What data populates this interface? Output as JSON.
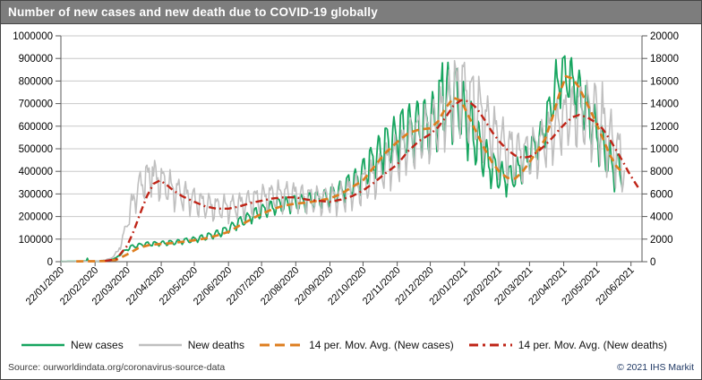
{
  "window": {
    "title": "Number of new cases and new death due to COVID-19 globally"
  },
  "footer": {
    "source": "Source: ourworldindata.org/coronavirus-source-data",
    "copyright": "© 2021 IHS Markit"
  },
  "colors": {
    "title_bg": "#7d7d7d",
    "title_text": "#ffffff",
    "frame_border": "#454545",
    "grid": "#c8c8c8",
    "axis": "#595959",
    "text": "#000000",
    "source_text": "#3a3a3a",
    "copyright_text": "#1f3864"
  },
  "chart_data": {
    "type": "line",
    "title": "Number of new cases and new death due to COVID-19 globally",
    "x_unit": "days since 22/01/2020",
    "x_range": [
      0,
      527
    ],
    "grid": "horizontal-only",
    "legend_position": "bottom",
    "left_axis": {
      "label": "New cases",
      "min": 0,
      "max": 1000000,
      "step": 100000
    },
    "right_axis": {
      "label": "New deaths",
      "min": 0,
      "max": 20000,
      "step": 2000
    },
    "x_tick_days": [
      0,
      31,
      60,
      91,
      121,
      152,
      182,
      213,
      244,
      274,
      305,
      335,
      366,
      397,
      425,
      456,
      486,
      517
    ],
    "x_tick_labels": [
      "22/01/2020",
      "22/02/2020",
      "22/03/2020",
      "22/04/2020",
      "22/05/2020",
      "22/06/2020",
      "22/07/2020",
      "22/08/2020",
      "22/09/2020",
      "22/10/2020",
      "22/11/2020",
      "22/12/2020",
      "22/01/2021",
      "22/02/2021",
      "22/03/2021",
      "22/04/2021",
      "22/05/2021",
      "22/06/2021"
    ],
    "weekly_pattern": [
      0.45,
      0.95,
      0.8,
      0.35,
      -0.25,
      -1.0,
      -0.7
    ],
    "series": [
      {
        "name": "New cases",
        "axis": "left",
        "color": "#16a55f",
        "width": 1.8,
        "style": "solid-daily",
        "start": 0,
        "end": 509,
        "seed": 0.8,
        "baseline": [
          [
            0,
            600
          ],
          [
            20,
            2100
          ],
          [
            30,
            1900
          ],
          [
            40,
            3200
          ],
          [
            50,
            16000
          ],
          [
            57,
            45000
          ],
          [
            64,
            66000
          ],
          [
            75,
            77000
          ],
          [
            87,
            80000
          ],
          [
            100,
            84000
          ],
          [
            110,
            90000
          ],
          [
            117,
            95000
          ],
          [
            127,
            104000
          ],
          [
            137,
            117000
          ],
          [
            148,
            134000
          ],
          [
            158,
            163000
          ],
          [
            168,
            189000
          ],
          [
            178,
            214000
          ],
          [
            188,
            234000
          ],
          [
            198,
            249000
          ],
          [
            209,
            257000
          ],
          [
            219,
            263000
          ],
          [
            229,
            271000
          ],
          [
            240,
            281000
          ],
          [
            250,
            302000
          ],
          [
            260,
            332000
          ],
          [
            270,
            363000
          ],
          [
            280,
            424000
          ],
          [
            290,
            484000
          ],
          [
            301,
            533000
          ],
          [
            311,
            572000
          ],
          [
            321,
            586000
          ],
          [
            331,
            591000
          ],
          [
            338,
            622000
          ],
          [
            345,
            683000
          ],
          [
            352,
            727000
          ],
          [
            359,
            709000
          ],
          [
            366,
            639000
          ],
          [
            373,
            568000
          ],
          [
            380,
            498000
          ],
          [
            387,
            438000
          ],
          [
            394,
            393000
          ],
          [
            401,
            369000
          ],
          [
            408,
            367000
          ],
          [
            415,
            401000
          ],
          [
            421,
            441000
          ],
          [
            428,
            491000
          ],
          [
            435,
            541000
          ],
          [
            442,
            642000
          ],
          [
            448,
            743000
          ],
          [
            454,
            823000
          ],
          [
            460,
            809000
          ],
          [
            466,
            769000
          ],
          [
            473,
            699000
          ],
          [
            480,
            629000
          ],
          [
            487,
            549000
          ],
          [
            494,
            469000
          ],
          [
            500,
            419000
          ],
          [
            509,
            390000
          ]
        ],
        "amplitude": [
          [
            0,
            0.08
          ],
          [
            60,
            0.1
          ],
          [
            150,
            0.12
          ],
          [
            244,
            0.13
          ],
          [
            274,
            0.16
          ],
          [
            305,
            0.19
          ],
          [
            340,
            0.21
          ],
          [
            370,
            0.22
          ],
          [
            400,
            0.18
          ],
          [
            430,
            0.14
          ],
          [
            460,
            0.13
          ],
          [
            480,
            0.18
          ],
          [
            509,
            0.22
          ]
        ],
        "overrides": [
          [
            24,
            15000
          ],
          [
            346,
            880000
          ],
          [
            449,
            895000
          ],
          [
            456,
            905000
          ]
        ]
      },
      {
        "name": "New deaths",
        "axis": "right",
        "color": "#bfbfbf",
        "width": 1.6,
        "style": "solid-daily",
        "start": 0,
        "end": 511,
        "seed": 3.1,
        "baseline": [
          [
            0,
            3
          ],
          [
            20,
            12
          ],
          [
            35,
            60
          ],
          [
            45,
            260
          ],
          [
            52,
            900
          ],
          [
            58,
            2600
          ],
          [
            64,
            4800
          ],
          [
            70,
            6300
          ],
          [
            76,
            7100
          ],
          [
            83,
            7300
          ],
          [
            90,
            7000
          ],
          [
            100,
            6300
          ],
          [
            110,
            5800
          ],
          [
            121,
            5300
          ],
          [
            131,
            4900
          ],
          [
            141,
            4700
          ],
          [
            152,
            4700
          ],
          [
            162,
            4900
          ],
          [
            172,
            5200
          ],
          [
            182,
            5500
          ],
          [
            192,
            5700
          ],
          [
            202,
            5800
          ],
          [
            213,
            5700
          ],
          [
            223,
            5500
          ],
          [
            233,
            5400
          ],
          [
            244,
            5400
          ],
          [
            254,
            5700
          ],
          [
            264,
            6100
          ],
          [
            274,
            6700
          ],
          [
            284,
            7400
          ],
          [
            294,
            8300
          ],
          [
            305,
            9200
          ],
          [
            315,
            10300
          ],
          [
            325,
            11000
          ],
          [
            335,
            11600
          ],
          [
            342,
            12300
          ],
          [
            349,
            13300
          ],
          [
            356,
            14200
          ],
          [
            363,
            14500
          ],
          [
            370,
            14100
          ],
          [
            377,
            13300
          ],
          [
            384,
            12200
          ],
          [
            391,
            11100
          ],
          [
            398,
            10300
          ],
          [
            405,
            9700
          ],
          [
            412,
            9300
          ],
          [
            419,
            9200
          ],
          [
            425,
            9400
          ],
          [
            432,
            9900
          ],
          [
            439,
            10600
          ],
          [
            446,
            11300
          ],
          [
            452,
            12000
          ],
          [
            458,
            12600
          ],
          [
            464,
            13000
          ],
          [
            470,
            13100
          ],
          [
            477,
            12800
          ],
          [
            484,
            12300
          ],
          [
            491,
            11600
          ],
          [
            498,
            10500
          ],
          [
            504,
            9500
          ],
          [
            511,
            8300
          ]
        ],
        "amplitude": [
          [
            0,
            0.1
          ],
          [
            60,
            0.28
          ],
          [
            90,
            0.3
          ],
          [
            150,
            0.3
          ],
          [
            210,
            0.28
          ],
          [
            270,
            0.3
          ],
          [
            330,
            0.27
          ],
          [
            345,
            0.26
          ],
          [
            375,
            0.3
          ],
          [
            400,
            0.3
          ],
          [
            430,
            0.26
          ],
          [
            460,
            0.22
          ],
          [
            478,
            0.28
          ],
          [
            511,
            0.33
          ]
        ],
        "overrides": [
          [
            83,
            8400
          ],
          [
            357,
            17800
          ],
          [
            364,
            17400
          ],
          [
            484,
            15800
          ],
          [
            491,
            15900
          ]
        ]
      },
      {
        "name": "14 per. Mov. Avg. (New cases)",
        "axis": "left",
        "color": "#de7e20",
        "width": 2.7,
        "style": "dashed",
        "dash": "8 5",
        "legend_dash": "11 6",
        "points": [
          [
            14,
            1500
          ],
          [
            30,
            1900
          ],
          [
            40,
            2600
          ],
          [
            50,
            8000
          ],
          [
            60,
            32000
          ],
          [
            70,
            60000
          ],
          [
            80,
            74000
          ],
          [
            91,
            79000
          ],
          [
            100,
            82000
          ],
          [
            110,
            88000
          ],
          [
            121,
            95000
          ],
          [
            131,
            103000
          ],
          [
            141,
            115000
          ],
          [
            152,
            132000
          ],
          [
            162,
            160000
          ],
          [
            172,
            186000
          ],
          [
            182,
            212000
          ],
          [
            192,
            232000
          ],
          [
            202,
            248000
          ],
          [
            213,
            257000
          ],
          [
            223,
            262000
          ],
          [
            233,
            270000
          ],
          [
            244,
            280000
          ],
          [
            254,
            300000
          ],
          [
            264,
            330000
          ],
          [
            274,
            360000
          ],
          [
            284,
            420000
          ],
          [
            294,
            480000
          ],
          [
            305,
            530000
          ],
          [
            315,
            570000
          ],
          [
            325,
            585000
          ],
          [
            335,
            591000
          ],
          [
            342,
            621000
          ],
          [
            349,
            681000
          ],
          [
            356,
            726000
          ],
          [
            363,
            712000
          ],
          [
            370,
            642000
          ],
          [
            377,
            571000
          ],
          [
            384,
            501000
          ],
          [
            391,
            441000
          ],
          [
            398,
            396000
          ],
          [
            405,
            371000
          ],
          [
            412,
            368000
          ],
          [
            419,
            401000
          ],
          [
            425,
            441000
          ],
          [
            432,
            491000
          ],
          [
            439,
            541000
          ],
          [
            446,
            641000
          ],
          [
            452,
            741000
          ],
          [
            458,
            821000
          ],
          [
            464,
            811000
          ],
          [
            470,
            771000
          ],
          [
            477,
            701000
          ],
          [
            484,
            631000
          ],
          [
            491,
            551000
          ],
          [
            498,
            471000
          ],
          [
            504,
            421000
          ],
          [
            509,
            396000
          ]
        ]
      },
      {
        "name": "14 per. Mov. Avg. (New deaths)",
        "axis": "right",
        "color": "#bf2417",
        "width": 2.4,
        "style": "dash-dot",
        "dash": "8 4 1.8 4",
        "legend_dash": "10 5 3 5",
        "points": [
          [
            40,
            60
          ],
          [
            50,
            220
          ],
          [
            60,
            1400
          ],
          [
            66,
            2700
          ],
          [
            72,
            4300
          ],
          [
            78,
            5800
          ],
          [
            84,
            6900
          ],
          [
            90,
            7200
          ],
          [
            96,
            6800
          ],
          [
            102,
            6300
          ],
          [
            110,
            5800
          ],
          [
            121,
            5300
          ],
          [
            131,
            4900
          ],
          [
            141,
            4700
          ],
          [
            152,
            4700
          ],
          [
            162,
            4900
          ],
          [
            172,
            5200
          ],
          [
            182,
            5400
          ],
          [
            192,
            5600
          ],
          [
            202,
            5700
          ],
          [
            213,
            5700
          ],
          [
            223,
            5500
          ],
          [
            233,
            5400
          ],
          [
            244,
            5300
          ],
          [
            254,
            5500
          ],
          [
            264,
            5800
          ],
          [
            274,
            6300
          ],
          [
            284,
            7000
          ],
          [
            294,
            7800
          ],
          [
            305,
            8600
          ],
          [
            315,
            9800
          ],
          [
            325,
            10700
          ],
          [
            335,
            11300
          ],
          [
            342,
            11900
          ],
          [
            349,
            12800
          ],
          [
            356,
            13800
          ],
          [
            363,
            14300
          ],
          [
            370,
            14200
          ],
          [
            377,
            13600
          ],
          [
            384,
            12600
          ],
          [
            391,
            11500
          ],
          [
            398,
            10600
          ],
          [
            405,
            9900
          ],
          [
            412,
            9400
          ],
          [
            419,
            9200
          ],
          [
            425,
            9300
          ],
          [
            432,
            9700
          ],
          [
            439,
            10300
          ],
          [
            446,
            11000
          ],
          [
            452,
            11700
          ],
          [
            458,
            12300
          ],
          [
            464,
            12800
          ],
          [
            470,
            13000
          ],
          [
            477,
            12800
          ],
          [
            484,
            12400
          ],
          [
            491,
            11800
          ],
          [
            498,
            10800
          ],
          [
            504,
            9800
          ],
          [
            510,
            8800
          ],
          [
            515,
            7900
          ],
          [
            520,
            7100
          ],
          [
            524,
            6500
          ]
        ]
      }
    ]
  }
}
